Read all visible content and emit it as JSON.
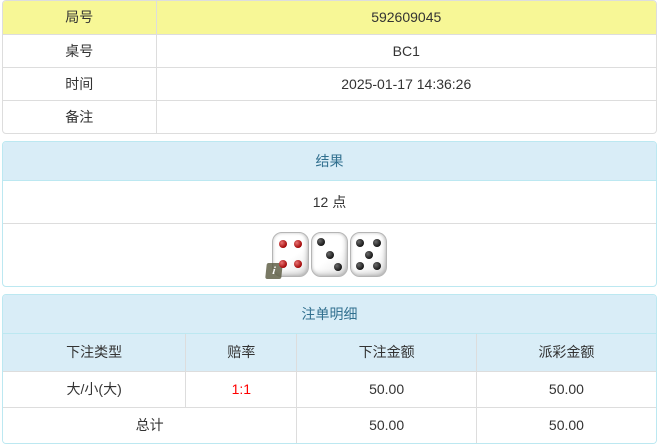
{
  "info_table": {
    "rows": [
      {
        "label": "局号",
        "value": "592609045",
        "highlight": true
      },
      {
        "label": "桌号",
        "value": "BC1",
        "highlight": false
      },
      {
        "label": "时间",
        "value": "2025-01-17 14:36:26",
        "highlight": false
      },
      {
        "label": "备注",
        "value": "",
        "highlight": false
      }
    ]
  },
  "result_panel": {
    "title": "结果",
    "points": "12 点",
    "dice": [
      {
        "value": 4,
        "color": "red"
      },
      {
        "value": 3,
        "color": "black"
      },
      {
        "value": 5,
        "color": "black"
      }
    ],
    "info_icon": "i"
  },
  "bet_panel": {
    "title": "注单明细",
    "columns": [
      "下注类型",
      "赔率",
      "下注金额",
      "派彩金额"
    ],
    "rows": [
      {
        "type": "大/小(大)",
        "odds": "1:1",
        "bet": "50.00",
        "payout": "50.00"
      }
    ],
    "total": {
      "label": "总计",
      "bet": "50.00",
      "payout": "50.00"
    }
  },
  "colors": {
    "highlight_yellow": "#f7f796",
    "panel_border": "#bce8f1",
    "panel_header_bg": "#d9edf7",
    "panel_header_text": "#31708f",
    "odds_red": "#ff0000",
    "row_border": "#dddddd"
  }
}
